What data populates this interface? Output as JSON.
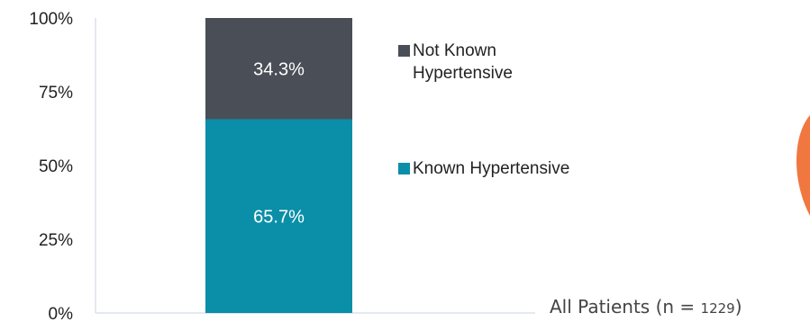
{
  "chart_data": {
    "type": "bar",
    "stacked": true,
    "percent": true,
    "categories": [
      "All Patients"
    ],
    "series": [
      {
        "name": "Known Hypertensive",
        "values": [
          65.7
        ],
        "label": "65.7%",
        "color": "#0B8FA8"
      },
      {
        "name": "Not Known Hypertensive",
        "values": [
          34.3
        ],
        "label": "34.3%",
        "color": "#4A4F57"
      }
    ],
    "ylim": [
      0,
      100
    ],
    "yticks": [
      "0%",
      "25%",
      "50%",
      "75%",
      "100%"
    ],
    "legend": [
      {
        "lines": [
          "Not Known",
          "Hypertensive"
        ],
        "color": "#4A4F57"
      },
      {
        "lines": [
          "Known Hypertensive"
        ],
        "color": "#0B8FA8"
      }
    ],
    "caption": {
      "prefix": "All Patients (n = ",
      "n": "1229",
      "suffix": ")"
    },
    "accent_shape_color": "#F07840"
  }
}
